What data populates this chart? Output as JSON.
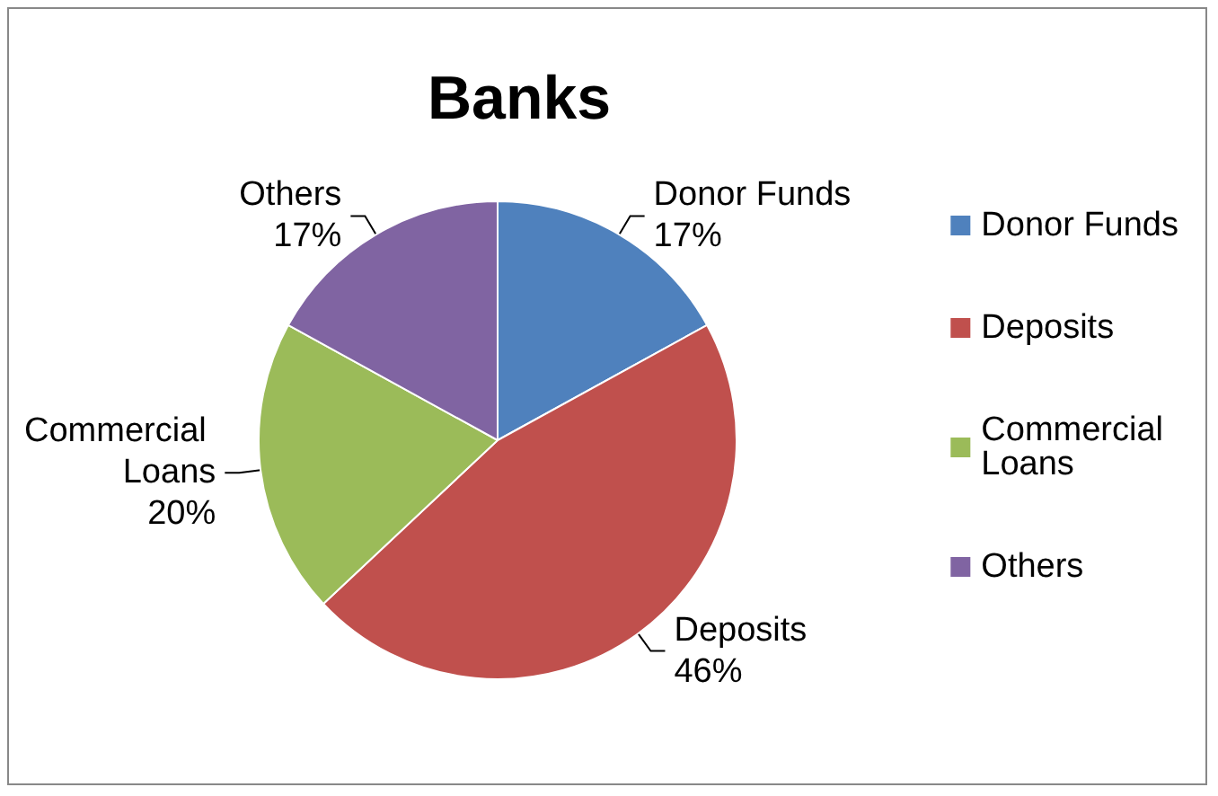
{
  "chart_data": {
    "type": "pie",
    "title": "Banks",
    "categories": [
      "Donor Funds",
      "Deposits",
      "Commercial Loans",
      "Others"
    ],
    "values": [
      17,
      46,
      20,
      17
    ],
    "colors": [
      "#4f81bd",
      "#c0504d",
      "#9bbb59",
      "#8064a2"
    ],
    "value_labels": [
      "17%",
      "46%",
      "20%",
      "17%"
    ],
    "legend": "right"
  }
}
